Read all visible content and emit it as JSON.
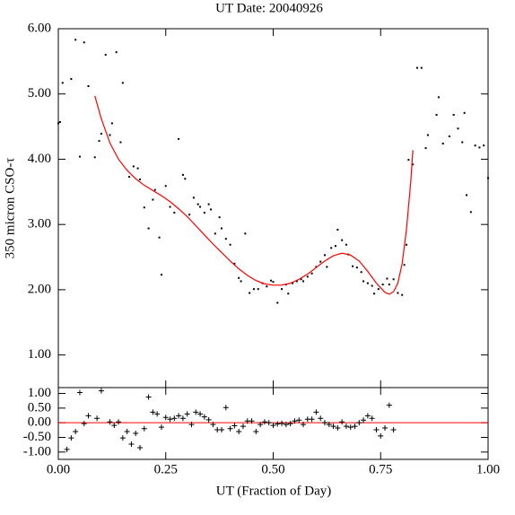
{
  "chart_data": [
    {
      "type": "scatter",
      "title": "UT Date: 20040926",
      "y_label": "350 micron CSO-τ",
      "xlim": [
        0,
        1
      ],
      "ylim": [
        0.5,
        6
      ],
      "yticks": [
        {
          "value": 1,
          "label": "1.00"
        },
        {
          "value": 2,
          "label": "2.00"
        },
        {
          "value": 3,
          "label": "3.00"
        },
        {
          "value": 4,
          "label": "4.00"
        },
        {
          "value": 5,
          "label": "5.00"
        },
        {
          "value": 6,
          "label": "6.00"
        }
      ],
      "series": [
        {
          "color": "#000000",
          "marker": "dot",
          "x": [
            0.0,
            0.004,
            0.01,
            0.03,
            0.04,
            0.06,
            0.05,
            0.07,
            0.085,
            0.095,
            0.1,
            0.11,
            0.12,
            0.125,
            0.135,
            0.145,
            0.15,
            0.165,
            0.175,
            0.185,
            0.19,
            0.2,
            0.21,
            0.22,
            0.225,
            0.235,
            0.24,
            0.25,
            0.26,
            0.27,
            0.28,
            0.29,
            0.295,
            0.305,
            0.315,
            0.325,
            0.33,
            0.34,
            0.35,
            0.355,
            0.365,
            0.375,
            0.38,
            0.39,
            0.4,
            0.41,
            0.42,
            0.425,
            0.435,
            0.445,
            0.455,
            0.465,
            0.475,
            0.485,
            0.495,
            0.5,
            0.51,
            0.52,
            0.53,
            0.535,
            0.545,
            0.555,
            0.565,
            0.57,
            0.58,
            0.59,
            0.6,
            0.61,
            0.62,
            0.625,
            0.635,
            0.645,
            0.65,
            0.66,
            0.67,
            0.675,
            0.685,
            0.695,
            0.705,
            0.71,
            0.72,
            0.73,
            0.735,
            0.745,
            0.755,
            0.765,
            0.77,
            0.78,
            0.79,
            0.8,
            0.805,
            0.81,
            0.815,
            0.825,
            0.835,
            0.845,
            0.855,
            0.86,
            0.88,
            0.885,
            0.895,
            0.91,
            0.92,
            0.93,
            0.94,
            0.945,
            0.95,
            0.96,
            0.97,
            0.98,
            0.99,
            1.0
          ],
          "values": [
            4.55,
            4.57,
            5.17,
            5.23,
            5.83,
            5.79,
            4.04,
            5.12,
            4.03,
            4.28,
            4.39,
            5.6,
            4.37,
            4.55,
            5.64,
            4.26,
            5.17,
            3.73,
            3.89,
            3.86,
            3.69,
            3.26,
            2.94,
            3.38,
            3.53,
            2.8,
            2.23,
            3.59,
            3.27,
            3.18,
            4.31,
            3.76,
            3.7,
            3.15,
            3.41,
            3.31,
            3.27,
            3.18,
            3.31,
            3.23,
            2.86,
            3.11,
            2.94,
            2.78,
            2.69,
            2.4,
            2.18,
            2.13,
            2.86,
            1.95,
            2.01,
            2.01,
            2.1,
            2.05,
            2.14,
            2.12,
            1.8,
            2.01,
            2.08,
            1.94,
            2.1,
            2.13,
            2.16,
            2.13,
            2.2,
            2.25,
            2.35,
            2.43,
            2.53,
            2.35,
            2.64,
            2.67,
            2.92,
            2.76,
            2.69,
            2.54,
            2.36,
            2.34,
            2.27,
            2.13,
            2.1,
            2.06,
            1.94,
            2.01,
            2.08,
            2.17,
            2.08,
            2.16,
            1.95,
            1.92,
            2.38,
            2.69,
            3.99,
            3.92,
            5.4,
            5.4,
            4.17,
            4.37,
            4.68,
            4.95,
            4.24,
            4.35,
            4.68,
            4.47,
            4.26,
            4.71,
            3.45,
            3.19,
            4.21,
            4.18,
            4.21,
            3.71
          ]
        },
        {
          "color": "#ff0000",
          "marker": "line",
          "x": [
            0.085,
            0.1,
            0.12,
            0.14,
            0.16,
            0.18,
            0.2,
            0.22,
            0.24,
            0.26,
            0.28,
            0.3,
            0.32,
            0.34,
            0.36,
            0.38,
            0.4,
            0.42,
            0.44,
            0.46,
            0.48,
            0.5,
            0.52,
            0.54,
            0.56,
            0.58,
            0.6,
            0.62,
            0.64,
            0.66,
            0.68,
            0.7,
            0.72,
            0.74,
            0.76,
            0.77,
            0.78,
            0.79,
            0.8,
            0.81,
            0.82,
            0.825
          ],
          "values": [
            4.97,
            4.62,
            4.25,
            4.0,
            3.83,
            3.7,
            3.6,
            3.52,
            3.44,
            3.35,
            3.24,
            3.12,
            2.98,
            2.84,
            2.7,
            2.57,
            2.44,
            2.32,
            2.22,
            2.14,
            2.09,
            2.07,
            2.07,
            2.1,
            2.16,
            2.24,
            2.34,
            2.44,
            2.52,
            2.56,
            2.53,
            2.44,
            2.28,
            2.1,
            1.96,
            1.93,
            1.97,
            2.1,
            2.4,
            2.92,
            3.65,
            4.14
          ]
        }
      ]
    },
    {
      "type": "scatter",
      "x_label": "UT (Fraction of Day)",
      "xlim": [
        0,
        1
      ],
      "ylim": [
        -1.25,
        1.2
      ],
      "xticks": [
        {
          "value": 0,
          "label": "0.00"
        },
        {
          "value": 0.25,
          "label": "0.25"
        },
        {
          "value": 0.5,
          "label": "0.50"
        },
        {
          "value": 0.75,
          "label": "0.75"
        },
        {
          "value": 1,
          "label": "1.00"
        }
      ],
      "yticks": [
        {
          "value": -1,
          "label": "-1.00"
        },
        {
          "value": -0.5,
          "label": "-0.50"
        },
        {
          "value": 0,
          "label": "0.00"
        },
        {
          "value": 0.5,
          "label": "0.50"
        },
        {
          "value": 1,
          "label": "1.00"
        }
      ],
      "reference_line": {
        "value": 0,
        "color": "#ff0000"
      },
      "series": [
        {
          "color": "#000000",
          "marker": "plus",
          "x": [
            0.02,
            0.03,
            0.04,
            0.05,
            0.06,
            0.07,
            0.09,
            0.1,
            0.12,
            0.13,
            0.14,
            0.15,
            0.16,
            0.17,
            0.18,
            0.19,
            0.2,
            0.21,
            0.22,
            0.23,
            0.24,
            0.25,
            0.26,
            0.27,
            0.28,
            0.29,
            0.3,
            0.31,
            0.32,
            0.33,
            0.34,
            0.35,
            0.36,
            0.37,
            0.38,
            0.39,
            0.4,
            0.41,
            0.42,
            0.43,
            0.44,
            0.45,
            0.46,
            0.47,
            0.48,
            0.49,
            0.5,
            0.51,
            0.52,
            0.53,
            0.54,
            0.55,
            0.56,
            0.57,
            0.58,
            0.59,
            0.6,
            0.61,
            0.62,
            0.63,
            0.64,
            0.65,
            0.66,
            0.67,
            0.68,
            0.69,
            0.7,
            0.71,
            0.72,
            0.73,
            0.74,
            0.75,
            0.76,
            0.77,
            0.78
          ],
          "values": [
            -0.91,
            -0.52,
            -0.3,
            1.03,
            -0.03,
            0.24,
            0.15,
            1.09,
            0.03,
            -0.09,
            0.03,
            -0.52,
            -0.3,
            -0.73,
            -0.36,
            -0.85,
            -0.2,
            0.88,
            0.36,
            0.3,
            -0.15,
            0.18,
            0.12,
            0.15,
            0.24,
            0.15,
            0.3,
            -0.06,
            0.36,
            0.3,
            0.2,
            0.1,
            -0.06,
            -0.24,
            -0.24,
            0.52,
            -0.2,
            -0.1,
            -0.3,
            -0.12,
            0.06,
            0.06,
            -0.3,
            -0.06,
            0.03,
            0.0,
            -0.09,
            -0.04,
            -0.02,
            -0.06,
            -0.03,
            0.06,
            0.09,
            -0.06,
            0.12,
            0.12,
            0.36,
            0.15,
            0.0,
            -0.06,
            -0.12,
            -0.18,
            0.03,
            -0.12,
            -0.15,
            -0.12,
            0.0,
            0.09,
            0.24,
            0.15,
            -0.24,
            -0.45,
            -0.18,
            0.6,
            -0.24
          ]
        }
      ]
    }
  ]
}
